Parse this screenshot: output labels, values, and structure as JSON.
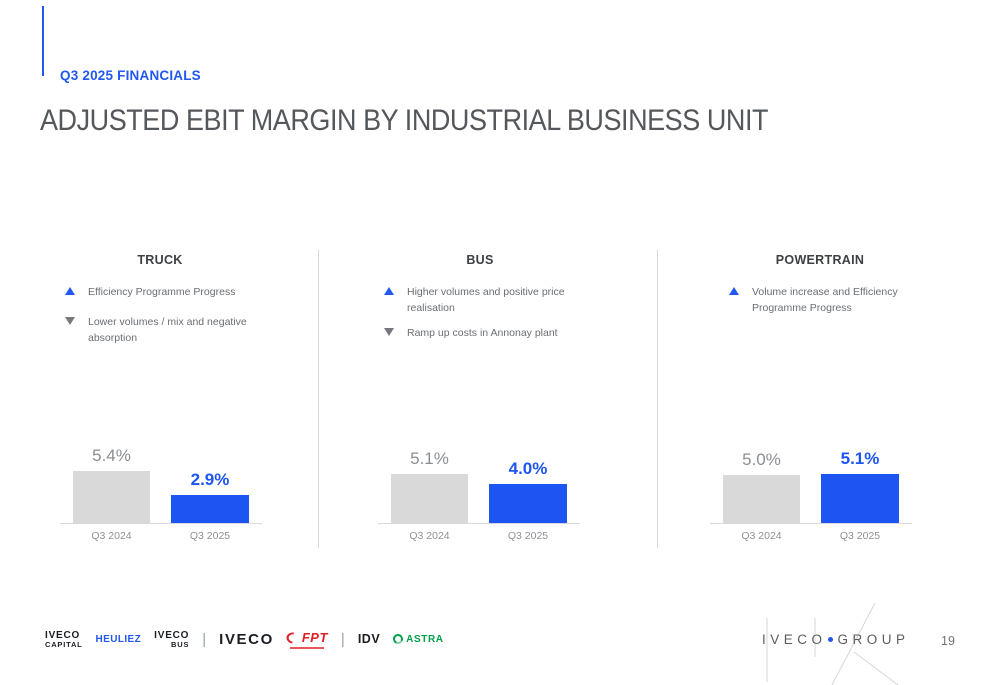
{
  "slide": {
    "eyebrow": "Q3 2025 FINANCIALS",
    "title": "ADJUSTED EBIT MARGIN BY INDUSTRIAL BUSINESS UNIT",
    "page_number": "19"
  },
  "colors": {
    "accent_blue": "#2257f0",
    "bar_blue": "#1d55f2",
    "bar_gray": "#d9d9d9",
    "title_gray": "#54575b",
    "body_gray": "#6a6e73",
    "heuliez_blue": "#2257f0",
    "fpt_red": "#e01f26",
    "astra_green": "#00a04a"
  },
  "sections": [
    {
      "name": "TRUCK",
      "bullets": [
        {
          "icon": "up-triangle-icon",
          "direction": "up",
          "text": "Efficiency Programme Progress"
        },
        {
          "icon": "down-triangle-icon",
          "direction": "down",
          "text": "Lower volumes / mix and negative absorption"
        }
      ]
    },
    {
      "name": "BUS",
      "bullets": [
        {
          "icon": "up-triangle-icon",
          "direction": "up",
          "text": "Higher volumes and positive price realisation"
        },
        {
          "icon": "down-triangle-icon",
          "direction": "down",
          "text": "Ramp up costs in Annonay plant"
        }
      ]
    },
    {
      "name": "POWERTRAIN",
      "bullets": [
        {
          "icon": "up-triangle-icon",
          "direction": "up",
          "text": "Volume increase and Efficiency Programme Progress"
        }
      ]
    }
  ],
  "chart_data": [
    {
      "type": "bar",
      "title": "TRUCK",
      "categories": [
        "Q3 2024",
        "Q3 2025"
      ],
      "values": [
        5.4,
        2.9
      ],
      "labels": [
        "5.4%",
        "2.9%"
      ],
      "unit": "%",
      "ylabel": "Adjusted EBIT margin",
      "ylim": [
        0,
        6
      ],
      "grid": false,
      "legend": false,
      "bar_colors": [
        "#d9d9d9",
        "#1d55f2"
      ]
    },
    {
      "type": "bar",
      "title": "BUS",
      "categories": [
        "Q3 2024",
        "Q3 2025"
      ],
      "values": [
        5.1,
        4.0
      ],
      "labels": [
        "5.1%",
        "4.0%"
      ],
      "unit": "%",
      "ylabel": "Adjusted EBIT margin",
      "ylim": [
        0,
        6
      ],
      "grid": false,
      "legend": false,
      "bar_colors": [
        "#d9d9d9",
        "#1d55f2"
      ]
    },
    {
      "type": "bar",
      "title": "POWERTRAIN",
      "categories": [
        "Q3 2024",
        "Q3 2025"
      ],
      "values": [
        5.0,
        5.1
      ],
      "labels": [
        "5.0%",
        "5.1%"
      ],
      "unit": "%",
      "ylabel": "Adjusted EBIT margin",
      "ylim": [
        0,
        6
      ],
      "grid": false,
      "legend": false,
      "bar_colors": [
        "#d9d9d9",
        "#1d55f2"
      ]
    }
  ],
  "footer": {
    "logos": [
      {
        "name": "iveco-capital",
        "line1": "IVECO",
        "line2": "CAPITAL"
      },
      {
        "name": "heuliez",
        "label": "HEULIEZ"
      },
      {
        "name": "iveco-bus",
        "line1": "IVECO",
        "line2": "BUS"
      },
      {
        "name": "iveco",
        "label": "IVECO"
      },
      {
        "name": "fpt",
        "label": "FPT"
      },
      {
        "name": "idv",
        "label": "IDV"
      },
      {
        "name": "astra",
        "label": "ASTRA"
      }
    ],
    "divider": "|",
    "group_logo": {
      "word1": "IVECO",
      "word2": "GROUP"
    }
  }
}
